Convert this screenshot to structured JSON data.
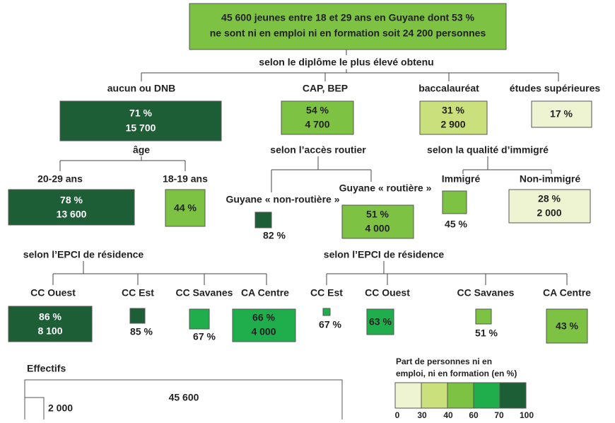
{
  "root": {
    "lines": [
      "45 600 jeunes entre 18 et 29 ans en Guyane dont 53 %",
      "ne sont ni en emploi ni en formation soit 24 200 personnes"
    ]
  },
  "splits": [
    "selon le diplôme le plus élevé obtenu",
    "âge",
    "selon l’accès routier",
    "selon la qualité d’immigré",
    "selon l’EPCI de résidence",
    "selon l’EPCI de résidence"
  ],
  "nodes": [
    {
      "label": "aucun ou DNB",
      "share": "71 %",
      "count": "15 700"
    },
    {
      "label": "CAP, BEP",
      "share": "54 %",
      "count": "4 700"
    },
    {
      "label": "baccalauréat",
      "share": "31 %",
      "count": "2 900"
    },
    {
      "label": "études supérieures",
      "share": "17 %"
    },
    {
      "label": "20-29 ans",
      "share": "78 %",
      "count": "13 600"
    },
    {
      "label": "18-19 ans",
      "share": "44 %"
    },
    {
      "label": "Guyane « non-routière »",
      "share": "82 %"
    },
    {
      "label": "Guyane « routière »",
      "share": "51 %",
      "count": "4 000"
    },
    {
      "label": "Immigré",
      "share": "45 %"
    },
    {
      "label": "Non-immigré",
      "share": "28 %",
      "count": "2 000"
    },
    {
      "label": "CC Ouest",
      "share": "86 %",
      "count": "8 100"
    },
    {
      "label": "CC Est",
      "share": "85 %"
    },
    {
      "label": "CC Savanes",
      "share": "67 %"
    },
    {
      "label": "CA Centre",
      "share": "66 %",
      "count": "4 000"
    },
    {
      "label": "CC Est",
      "share": "67 %"
    },
    {
      "label": "CC Ouest",
      "share": "63 %"
    },
    {
      "label": "CC Savanes",
      "share": "51 %"
    },
    {
      "label": "CA Centre",
      "share": "43 %"
    }
  ],
  "legend": {
    "size_title": "Effectifs",
    "size_values": [
      "45 600",
      "2 000"
    ],
    "color_title": [
      "Part de personnes ni en",
      "emploi, ni en formation (en %)"
    ],
    "color_ticks": [
      0,
      30,
      40,
      60,
      70,
      100
    ]
  }
}
